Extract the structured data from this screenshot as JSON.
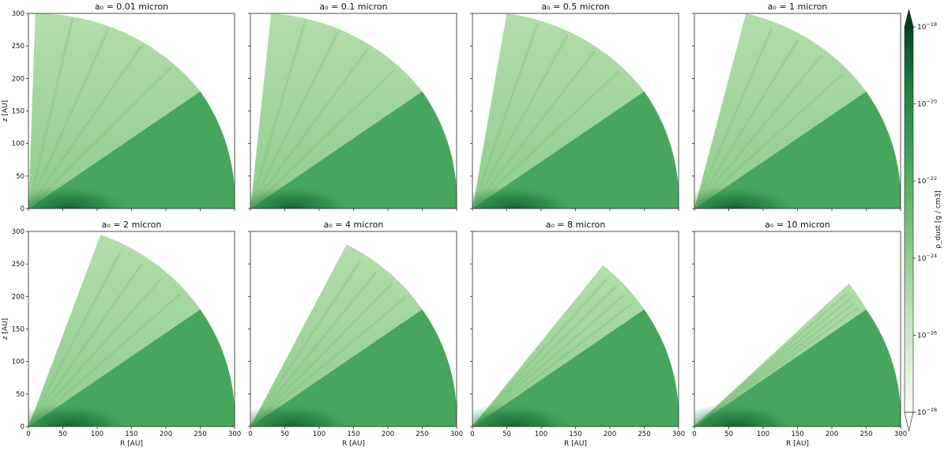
{
  "chart_data": {
    "type": "heatmap",
    "panels": [
      {
        "title": "a₀ = 0.01 micron",
        "a0_micron": 0.01,
        "envelope_tip": [
          10,
          300
        ]
      },
      {
        "title": "a₀ = 0.1 micron",
        "a0_micron": 0.1,
        "envelope_tip": [
          30,
          300
        ]
      },
      {
        "title": "a₀ = 0.5 micron",
        "a0_micron": 0.5,
        "envelope_tip": [
          50,
          300
        ]
      },
      {
        "title": "a₀ = 1 micron",
        "a0_micron": 1,
        "envelope_tip": [
          75,
          300
        ]
      },
      {
        "title": "a₀ = 2 micron",
        "a0_micron": 2,
        "envelope_tip": [
          105,
          295
        ]
      },
      {
        "title": "a₀ = 4 micron",
        "a0_micron": 4,
        "envelope_tip": [
          140,
          280
        ]
      },
      {
        "title": "a₀ = 8 micron",
        "a0_micron": 8,
        "envelope_tip": [
          190,
          248
        ]
      },
      {
        "title": "a₀ = 10 micron",
        "a0_micron": 10,
        "envelope_tip": [
          225,
          220
        ]
      }
    ],
    "disk_edge": [
      250,
      180
    ],
    "outer_radius_au": 300,
    "xlabel": "R [AU]",
    "ylabel": "z [AU]",
    "xlim": [
      0,
      300
    ],
    "ylim": [
      0,
      300
    ],
    "xticks": [
      "0",
      "50",
      "100",
      "150",
      "200",
      "250",
      "300"
    ],
    "yticks": [
      "0",
      "50",
      "100",
      "150",
      "200",
      "250",
      "300"
    ],
    "colorbar": {
      "label": "ρ_dust [g / cm3]",
      "scale": "log",
      "range": [
        1e-28,
        1e-18
      ],
      "ticks": [
        {
          "value": 1e-18,
          "label_base": "10",
          "label_exp": "−18"
        },
        {
          "value": 1e-20,
          "label_base": "10",
          "label_exp": "−20"
        },
        {
          "value": 1e-22,
          "label_base": "10",
          "label_exp": "−22"
        },
        {
          "value": 1e-24,
          "label_base": "10",
          "label_exp": "−24"
        },
        {
          "value": 1e-26,
          "label_base": "10",
          "label_exp": "−26"
        },
        {
          "value": 1e-28,
          "label_base": "10",
          "label_exp": "−28"
        }
      ],
      "colormap": "Greens"
    },
    "colors": {
      "envelope": "#a3d69c",
      "disk": "#46a75c",
      "disk_core": "#0f5a2a",
      "cmap_dark": "#00441b",
      "cmap_light": "#f7fcf5"
    }
  }
}
